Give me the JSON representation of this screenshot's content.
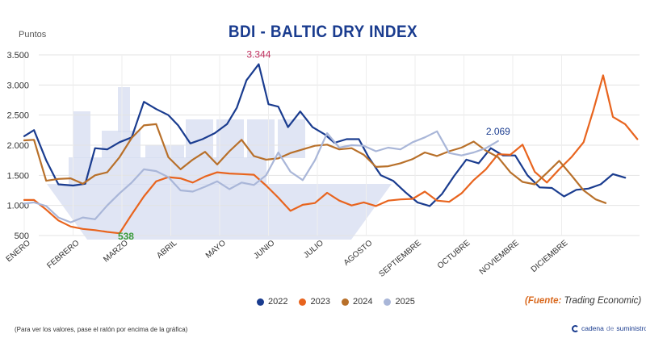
{
  "page": {
    "title": "BDI - BALTIC DRY INDEX",
    "note": "(Para ver los valores, pase el ratón por encima de la gráfica)",
    "source_prefix": "(Fuente:",
    "source_text": " Trading Economic)",
    "brand_a": "cadena",
    "brand_b": "de",
    "brand_c": "suministro"
  },
  "colors": {
    "s2022": "#1a3c8f",
    "s2023": "#e8641e",
    "s2024": "#b8702a",
    "s2025": "#a9b6d8",
    "ship": "#d6dcf0"
  },
  "chart_data": {
    "type": "line",
    "title": "BDI - BALTIC DRY INDEX",
    "ylabel": "Puntos",
    "xlabel": "",
    "ylim": [
      500,
      3500
    ],
    "yticks": [
      "500",
      "1.000",
      "1.500",
      "2.000",
      "2.500",
      "3.000",
      "3.500"
    ],
    "categories": [
      "ENERO",
      "FEBRERO",
      "MARZO",
      "ABRIL",
      "MAYO",
      "JUNIO",
      "JULIO",
      "AGOSTO",
      "SEPTIEMBRE",
      "OCTUBRE",
      "NOVIEMBRE",
      "DICIEMBRE"
    ],
    "grid": true,
    "legend": "bottom",
    "series": [
      {
        "name": "2022",
        "color": "#1a3c8f",
        "values": [
          [
            0,
            2150
          ],
          [
            0.2,
            2250
          ],
          [
            0.45,
            1750
          ],
          [
            0.7,
            1350
          ],
          [
            1.0,
            1330
          ],
          [
            1.25,
            1360
          ],
          [
            1.45,
            1950
          ],
          [
            1.7,
            1930
          ],
          [
            1.95,
            2050
          ],
          [
            2.2,
            2130
          ],
          [
            2.45,
            2720
          ],
          [
            2.7,
            2600
          ],
          [
            2.95,
            2500
          ],
          [
            3.15,
            2330
          ],
          [
            3.4,
            2030
          ],
          [
            3.65,
            2100
          ],
          [
            3.9,
            2200
          ],
          [
            4.15,
            2350
          ],
          [
            4.35,
            2620
          ],
          [
            4.55,
            3080
          ],
          [
            4.8,
            3344
          ],
          [
            5.0,
            2680
          ],
          [
            5.2,
            2640
          ],
          [
            5.4,
            2300
          ],
          [
            5.65,
            2560
          ],
          [
            5.9,
            2300
          ],
          [
            6.15,
            2180
          ],
          [
            6.35,
            2040
          ],
          [
            6.6,
            2100
          ],
          [
            6.85,
            2100
          ],
          [
            7.05,
            1800
          ],
          [
            7.3,
            1500
          ],
          [
            7.55,
            1410
          ],
          [
            7.8,
            1220
          ],
          [
            8.05,
            1050
          ],
          [
            8.3,
            990
          ],
          [
            8.55,
            1190
          ],
          [
            8.8,
            1490
          ],
          [
            9.05,
            1760
          ],
          [
            9.3,
            1700
          ],
          [
            9.55,
            1950
          ],
          [
            9.8,
            1830
          ],
          [
            10.05,
            1830
          ],
          [
            10.3,
            1500
          ],
          [
            10.55,
            1300
          ],
          [
            10.8,
            1290
          ],
          [
            11.05,
            1150
          ],
          [
            11.3,
            1260
          ],
          [
            11.55,
            1280
          ],
          [
            11.8,
            1350
          ],
          [
            12.05,
            1520
          ],
          [
            12.3,
            1460
          ]
        ]
      },
      {
        "name": "2023",
        "color": "#e8641e",
        "values": [
          [
            0,
            1090
          ],
          [
            0.2,
            1090
          ],
          [
            0.45,
            930
          ],
          [
            0.7,
            750
          ],
          [
            0.95,
            650
          ],
          [
            1.2,
            610
          ],
          [
            1.45,
            590
          ],
          [
            1.7,
            560
          ],
          [
            1.95,
            538
          ],
          [
            2.2,
            850
          ],
          [
            2.45,
            1150
          ],
          [
            2.7,
            1400
          ],
          [
            2.95,
            1470
          ],
          [
            3.2,
            1450
          ],
          [
            3.45,
            1380
          ],
          [
            3.7,
            1480
          ],
          [
            3.95,
            1550
          ],
          [
            4.2,
            1530
          ],
          [
            4.45,
            1520
          ],
          [
            4.7,
            1510
          ],
          [
            4.95,
            1330
          ],
          [
            5.2,
            1130
          ],
          [
            5.45,
            910
          ],
          [
            5.7,
            1010
          ],
          [
            5.95,
            1040
          ],
          [
            6.2,
            1210
          ],
          [
            6.45,
            1080
          ],
          [
            6.7,
            1000
          ],
          [
            6.95,
            1050
          ],
          [
            7.2,
            990
          ],
          [
            7.45,
            1080
          ],
          [
            7.7,
            1100
          ],
          [
            7.95,
            1110
          ],
          [
            8.2,
            1230
          ],
          [
            8.45,
            1080
          ],
          [
            8.7,
            1060
          ],
          [
            8.95,
            1200
          ],
          [
            9.2,
            1420
          ],
          [
            9.45,
            1600
          ],
          [
            9.7,
            1850
          ],
          [
            9.95,
            1840
          ],
          [
            10.2,
            2010
          ],
          [
            10.45,
            1560
          ],
          [
            10.7,
            1380
          ],
          [
            10.95,
            1600
          ],
          [
            11.2,
            1800
          ],
          [
            11.45,
            2050
          ],
          [
            11.65,
            2580
          ],
          [
            11.85,
            3160
          ],
          [
            12.05,
            2470
          ],
          [
            12.3,
            2350
          ],
          [
            12.55,
            2100
          ]
        ]
      },
      {
        "name": "2024",
        "color": "#b8702a",
        "values": [
          [
            0,
            2080
          ],
          [
            0.2,
            2090
          ],
          [
            0.45,
            1410
          ],
          [
            0.7,
            1440
          ],
          [
            0.95,
            1450
          ],
          [
            1.2,
            1360
          ],
          [
            1.45,
            1500
          ],
          [
            1.7,
            1550
          ],
          [
            1.95,
            1800
          ],
          [
            2.2,
            2120
          ],
          [
            2.45,
            2330
          ],
          [
            2.7,
            2350
          ],
          [
            2.95,
            1800
          ],
          [
            3.2,
            1600
          ],
          [
            3.45,
            1760
          ],
          [
            3.7,
            1890
          ],
          [
            3.95,
            1680
          ],
          [
            4.2,
            1900
          ],
          [
            4.45,
            2090
          ],
          [
            4.7,
            1820
          ],
          [
            4.95,
            1760
          ],
          [
            5.2,
            1780
          ],
          [
            5.45,
            1870
          ],
          [
            5.7,
            1930
          ],
          [
            5.95,
            1990
          ],
          [
            6.2,
            2010
          ],
          [
            6.45,
            1930
          ],
          [
            6.7,
            1950
          ],
          [
            6.95,
            1840
          ],
          [
            7.2,
            1640
          ],
          [
            7.45,
            1650
          ],
          [
            7.7,
            1700
          ],
          [
            7.95,
            1770
          ],
          [
            8.2,
            1880
          ],
          [
            8.45,
            1820
          ],
          [
            8.7,
            1900
          ],
          [
            8.95,
            1960
          ],
          [
            9.2,
            2060
          ],
          [
            9.45,
            1910
          ],
          [
            9.7,
            1800
          ],
          [
            9.95,
            1550
          ],
          [
            10.2,
            1390
          ],
          [
            10.45,
            1350
          ],
          [
            10.7,
            1540
          ],
          [
            10.95,
            1740
          ],
          [
            11.2,
            1500
          ],
          [
            11.45,
            1250
          ],
          [
            11.7,
            1100
          ],
          [
            11.9,
            1040
          ]
        ]
      },
      {
        "name": "2025",
        "color": "#a9b6d8",
        "values": [
          [
            0,
            1030
          ],
          [
            0.2,
            1050
          ],
          [
            0.45,
            990
          ],
          [
            0.7,
            800
          ],
          [
            0.95,
            720
          ],
          [
            1.2,
            800
          ],
          [
            1.45,
            770
          ],
          [
            1.7,
            1000
          ],
          [
            1.95,
            1200
          ],
          [
            2.2,
            1380
          ],
          [
            2.45,
            1600
          ],
          [
            2.7,
            1570
          ],
          [
            2.95,
            1470
          ],
          [
            3.2,
            1250
          ],
          [
            3.45,
            1230
          ],
          [
            3.7,
            1310
          ],
          [
            3.95,
            1400
          ],
          [
            4.2,
            1270
          ],
          [
            4.45,
            1380
          ],
          [
            4.7,
            1340
          ],
          [
            4.95,
            1500
          ],
          [
            5.2,
            1880
          ],
          [
            5.45,
            1560
          ],
          [
            5.7,
            1420
          ],
          [
            5.95,
            1750
          ],
          [
            6.2,
            2200
          ],
          [
            6.45,
            1960
          ],
          [
            6.7,
            2000
          ],
          [
            6.95,
            1990
          ],
          [
            7.2,
            1900
          ],
          [
            7.45,
            1960
          ],
          [
            7.7,
            1930
          ],
          [
            7.95,
            2050
          ],
          [
            8.2,
            2130
          ],
          [
            8.45,
            2230
          ],
          [
            8.7,
            1870
          ],
          [
            8.95,
            1830
          ],
          [
            9.2,
            1880
          ],
          [
            9.45,
            1950
          ],
          [
            9.7,
            2069
          ]
        ]
      }
    ],
    "annotations": [
      {
        "text": "3.344",
        "series": "2022",
        "x": 4.8,
        "y": 3344,
        "color": "#c0305f"
      },
      {
        "text": "538",
        "series": "2023",
        "x": 1.95,
        "y": 538,
        "color": "#3a9a3a"
      },
      {
        "text": "2.069",
        "series": "2025",
        "x": 9.7,
        "y": 2069,
        "color": "#1a3c8f"
      }
    ]
  }
}
